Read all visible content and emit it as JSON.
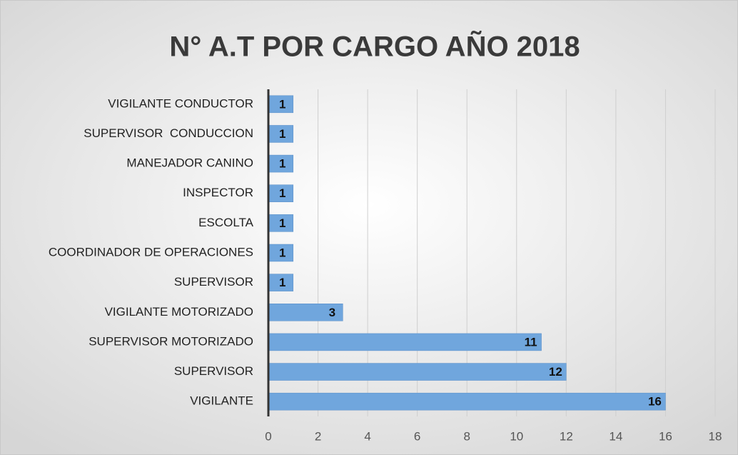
{
  "chart_data": {
    "type": "bar",
    "orientation": "horizontal",
    "title": "N° A.T POR CARGO AÑO 2018",
    "categories": [
      "VIGILANTE CONDUCTOR",
      "SUPERVISOR  CONDUCCION",
      "MANEJADOR CANINO",
      "INSPECTOR",
      "ESCOLTA",
      "COORDINADOR DE OPERACIONES",
      "SUPERVISOR",
      "VIGILANTE MOTORIZADO",
      "SUPERVISOR MOTORIZADO",
      "SUPERVISOR",
      "VIGILANTE"
    ],
    "values": [
      1,
      1,
      1,
      1,
      1,
      1,
      1,
      3,
      11,
      12,
      16
    ],
    "color": "#70a6dd",
    "xlim": [
      0,
      18
    ],
    "xticks": [
      0,
      2,
      4,
      6,
      8,
      10,
      12,
      14,
      16,
      18
    ],
    "grid": true
  }
}
